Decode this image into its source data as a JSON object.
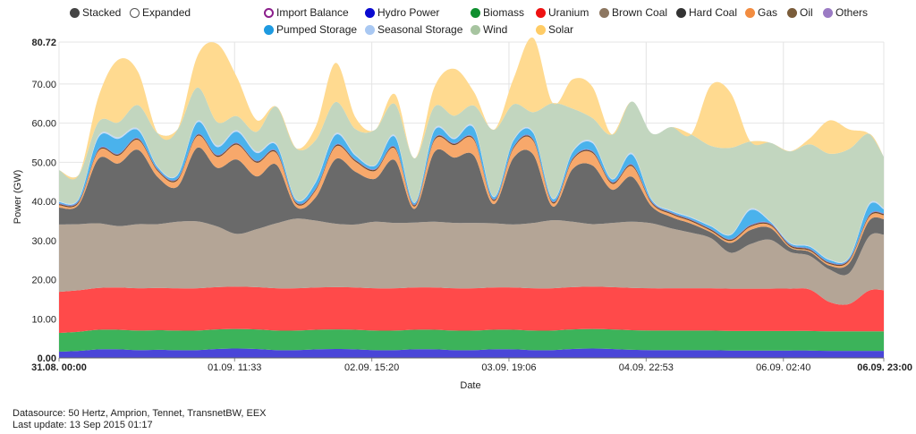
{
  "legend": {
    "mode_items": [
      {
        "name": "stacked",
        "label": "Stacked",
        "color": "#444444",
        "style": "filled"
      },
      {
        "name": "expanded",
        "label": "Expanded",
        "color": "#444444",
        "style": "hollow"
      }
    ],
    "series_row1": [
      {
        "name": "import-balance",
        "label": "Import Balance",
        "color": "#8b1e8b",
        "style": "hollow-purple"
      },
      {
        "name": "hydro-power",
        "label": "Hydro Power",
        "color": "#0a0ad0",
        "style": "filled"
      },
      {
        "name": "biomass",
        "label": "Biomass",
        "color": "#0f8f2f",
        "style": "filled"
      },
      {
        "name": "uranium",
        "label": "Uranium",
        "color": "#ee1111",
        "style": "filled"
      },
      {
        "name": "brown-coal",
        "label": "Brown Coal",
        "color": "#8c7660",
        "style": "filled"
      },
      {
        "name": "hard-coal",
        "label": "Hard Coal",
        "color": "#333333",
        "style": "filled"
      },
      {
        "name": "gas",
        "label": "Gas",
        "color": "#f28c40",
        "style": "filled"
      },
      {
        "name": "oil",
        "label": "Oil",
        "color": "#7a5c3a",
        "style": "filled"
      },
      {
        "name": "others",
        "label": "Others",
        "color": "#9b7bc4",
        "style": "filled"
      }
    ],
    "series_row2": [
      {
        "name": "pumped-storage",
        "label": "Pumped Storage",
        "color": "#1e9ae0",
        "style": "filled"
      },
      {
        "name": "seasonal-storage",
        "label": "Seasonal Storage",
        "color": "#a9c8f2",
        "style": "filled"
      },
      {
        "name": "wind",
        "label": "Wind",
        "color": "#a7c4a0",
        "style": "filled"
      },
      {
        "name": "solar",
        "label": "Solar",
        "color": "#ffcc66",
        "style": "filled"
      }
    ]
  },
  "footer": {
    "datasource": "Datasource: 50 Hertz, Amprion, Tennet, TransnetBW, EEX",
    "last_update": "Last update: 13 Sep 2015 01:17"
  },
  "chart_data": {
    "type": "area",
    "stacked": true,
    "title": "",
    "xlabel": "Date",
    "ylabel": "Power (GW)",
    "ylim": [
      0,
      80.72
    ],
    "y_ticks": [
      "0.00",
      "10.00",
      "20.00",
      "30.00",
      "40.00",
      "50.00",
      "60.00",
      "70.00",
      "80.72"
    ],
    "x_range_hours": [
      0,
      167
    ],
    "x_ticks": [
      {
        "label": "31.08. 00:00",
        "hour": 0,
        "bold": true
      },
      {
        "label": "01.09. 11:33",
        "hour": 35.55,
        "bold": false
      },
      {
        "label": "02.09. 15:20",
        "hour": 63.33,
        "bold": false
      },
      {
        "label": "03.09. 19:06",
        "hour": 91.1,
        "bold": false
      },
      {
        "label": "04.09. 22:53",
        "hour": 118.88,
        "bold": false
      },
      {
        "label": "06.09. 02:40",
        "hour": 146.67,
        "bold": false
      },
      {
        "label": "06.09. 23:00",
        "hour": 167,
        "bold": true
      }
    ],
    "x": [
      0,
      4,
      8,
      12,
      16,
      20,
      24,
      28,
      32,
      36,
      40,
      44,
      48,
      52,
      56,
      60,
      64,
      68,
      72,
      76,
      80,
      84,
      88,
      92,
      96,
      100,
      104,
      108,
      112,
      116,
      120,
      124,
      128,
      132,
      136,
      140,
      144,
      148,
      152,
      156,
      160,
      164,
      167
    ],
    "series": [
      {
        "name": "Hydro Power",
        "color": "#4a46d8",
        "values": [
          1.6,
          1.8,
          2.2,
          2.2,
          2.0,
          2.1,
          2.0,
          2.0,
          2.3,
          2.4,
          2.3,
          2.0,
          2.0,
          2.2,
          2.3,
          2.2,
          2.0,
          2.0,
          2.2,
          2.2,
          2.0,
          2.0,
          2.2,
          2.2,
          2.0,
          2.0,
          2.3,
          2.4,
          2.3,
          2.1,
          2.0,
          2.0,
          2.0,
          2.0,
          1.9,
          1.9,
          1.9,
          1.9,
          1.9,
          1.8,
          1.8,
          1.8,
          1.8
        ]
      },
      {
        "name": "Biomass",
        "color": "#3cb35a",
        "values": [
          4.8,
          4.9,
          5.0,
          5.0,
          5.0,
          5.0,
          5.0,
          5.0,
          5.0,
          5.0,
          5.0,
          5.0,
          5.0,
          5.0,
          5.0,
          5.0,
          5.0,
          5.0,
          5.0,
          5.0,
          5.0,
          5.0,
          5.0,
          5.0,
          5.0,
          5.0,
          5.0,
          5.0,
          5.0,
          5.0,
          5.0,
          5.0,
          5.0,
          5.0,
          5.0,
          5.0,
          5.0,
          5.0,
          5.0,
          5.0,
          5.0,
          5.0,
          5.0
        ]
      },
      {
        "name": "Uranium",
        "color": "#ff4a4a",
        "values": [
          10.5,
          10.6,
          10.7,
          10.8,
          10.8,
          10.8,
          10.8,
          10.8,
          10.8,
          10.8,
          10.8,
          10.8,
          10.8,
          10.8,
          10.8,
          10.8,
          10.8,
          10.8,
          10.8,
          10.8,
          10.8,
          10.8,
          10.8,
          10.8,
          10.8,
          10.8,
          10.8,
          10.8,
          10.8,
          10.8,
          10.8,
          10.8,
          10.8,
          10.8,
          10.8,
          10.8,
          10.8,
          10.8,
          10.6,
          7.5,
          7.0,
          10.4,
          10.5
        ]
      },
      {
        "name": "Brown Coal",
        "color": "#b4a596",
        "values": [
          17.2,
          16.9,
          16.5,
          15.7,
          16.4,
          16.3,
          17.0,
          17.1,
          15.5,
          13.5,
          14.8,
          16.6,
          17.8,
          17.1,
          16.2,
          16.1,
          17.0,
          16.7,
          16.6,
          16.8,
          16.7,
          16.7,
          16.4,
          16.1,
          16.7,
          17.4,
          16.7,
          16.0,
          16.4,
          16.9,
          16.6,
          15.3,
          14.2,
          12.8,
          9.2,
          11.4,
          12.5,
          9.4,
          8.6,
          8.3,
          7.9,
          13.8,
          14.2
        ]
      },
      {
        "name": "Hard Coal",
        "color": "#6a6a6a",
        "values": [
          4.3,
          5.0,
          16.5,
          16.0,
          19.0,
          12.0,
          9.0,
          18.8,
          15.0,
          19.0,
          13.5,
          15.0,
          3.0,
          6.0,
          16.5,
          13.5,
          11.0,
          16.0,
          3.5,
          17.8,
          16.7,
          17.2,
          4.9,
          17.0,
          17.5,
          3.5,
          13.5,
          15.0,
          8.5,
          11.5,
          4.3,
          2.9,
          2.3,
          1.5,
          2.5,
          3.6,
          3.0,
          1.1,
          1.0,
          1.0,
          2.5,
          4.0,
          4.0
        ]
      },
      {
        "name": "Gas",
        "color": "#f7a86b",
        "values": [
          0.6,
          0.5,
          2.0,
          2.0,
          2.5,
          1.5,
          1.6,
          3.0,
          2.8,
          3.8,
          3.5,
          3.0,
          0.8,
          1.8,
          3.2,
          2.6,
          2.0,
          3.0,
          0.6,
          3.0,
          3.2,
          4.0,
          0.8,
          2.4,
          3.5,
          0.8,
          2.3,
          3.2,
          1.5,
          2.7,
          0.8,
          0.7,
          0.6,
          0.4,
          0.5,
          0.8,
          0.7,
          0.3,
          0.3,
          0.4,
          0.6,
          1.0,
          1.0
        ]
      },
      {
        "name": "Oil",
        "color": "#6b4a2a",
        "values": [
          0.3,
          0.3,
          0.3,
          0.3,
          0.3,
          0.3,
          0.3,
          0.3,
          0.3,
          0.3,
          0.3,
          0.3,
          0.3,
          0.3,
          0.3,
          0.3,
          0.3,
          0.3,
          0.3,
          0.3,
          0.3,
          0.3,
          0.3,
          0.3,
          0.3,
          0.3,
          0.3,
          0.3,
          0.3,
          0.3,
          0.3,
          0.3,
          0.3,
          0.3,
          0.3,
          0.3,
          0.3,
          0.3,
          0.3,
          0.3,
          0.3,
          0.3,
          0.3
        ]
      },
      {
        "name": "Others",
        "color": "#8a7ac6",
        "values": [
          0.2,
          0.2,
          0.2,
          0.2,
          0.2,
          0.2,
          0.2,
          0.2,
          0.2,
          0.2,
          0.2,
          0.2,
          0.2,
          0.2,
          0.2,
          0.2,
          0.2,
          0.2,
          0.2,
          0.2,
          0.2,
          0.2,
          0.2,
          0.2,
          0.2,
          0.2,
          0.2,
          0.2,
          0.2,
          0.2,
          0.2,
          0.2,
          0.2,
          0.2,
          0.2,
          0.2,
          0.2,
          0.2,
          0.2,
          0.2,
          0.2,
          0.2,
          0.2
        ]
      },
      {
        "name": "Pumped Storage",
        "color": "#4ab2ec",
        "values": [
          0.3,
          0.4,
          3.0,
          3.8,
          2.0,
          0.5,
          0.8,
          3.0,
          2.0,
          2.8,
          2.0,
          1.5,
          0.5,
          1.5,
          2.5,
          1.0,
          0.8,
          2.5,
          0.4,
          2.0,
          1.0,
          2.5,
          0.5,
          1.5,
          1.5,
          0.6,
          1.5,
          2.0,
          0.6,
          2.5,
          0.4,
          0.3,
          0.4,
          0.6,
          1.0,
          3.8,
          0.4,
          0.3,
          0.5,
          0.5,
          0.3,
          2.5,
          1.0
        ]
      },
      {
        "name": "Seasonal Storage",
        "color": "#c5daf5",
        "values": [
          0.2,
          0.2,
          0.4,
          0.4,
          0.4,
          0.2,
          0.2,
          0.4,
          0.4,
          0.4,
          0.4,
          0.3,
          0.2,
          0.3,
          0.4,
          0.3,
          0.2,
          0.4,
          0.2,
          0.4,
          0.3,
          0.4,
          0.2,
          0.3,
          0.3,
          0.2,
          0.3,
          0.4,
          0.2,
          0.4,
          0.2,
          0.2,
          0.2,
          0.2,
          0.2,
          0.4,
          0.2,
          0.2,
          0.2,
          0.2,
          0.2,
          0.4,
          0.3
        ]
      },
      {
        "name": "Wind",
        "color": "#c2d6bf",
        "values": [
          8.0,
          6.0,
          3.5,
          3.8,
          6.0,
          8.5,
          11.5,
          8.5,
          6.0,
          3.6,
          5.0,
          9.5,
          13.0,
          10.5,
          8.0,
          6.5,
          9.0,
          8.0,
          11.2,
          5.7,
          5.7,
          5.4,
          17.0,
          9.0,
          5.0,
          24.3,
          10.8,
          6.0,
          11.3,
          13.1,
          16.8,
          21.3,
          21.1,
          20.4,
          22.1,
          17.1,
          20.0,
          23.3,
          26.0,
          27.0,
          27.6,
          17.9,
          13.1
        ]
      },
      {
        "name": "Solar",
        "color": "#ffda90",
        "values": [
          0.0,
          0.0,
          6.5,
          16.0,
          8.5,
          0.0,
          0.0,
          8.0,
          20.0,
          10.0,
          3.0,
          0.0,
          0.0,
          3.5,
          10.0,
          3.0,
          0.0,
          2.5,
          0.0,
          5.0,
          12.0,
          3.5,
          0.0,
          6.5,
          19.0,
          0.0,
          7.5,
          8.0,
          0.0,
          0.0,
          0.0,
          0.0,
          0.0,
          15.5,
          14.0,
          0.0,
          0.0,
          0.0,
          1.5,
          8.5,
          5.0,
          0.0,
          0.0
        ]
      }
    ]
  }
}
